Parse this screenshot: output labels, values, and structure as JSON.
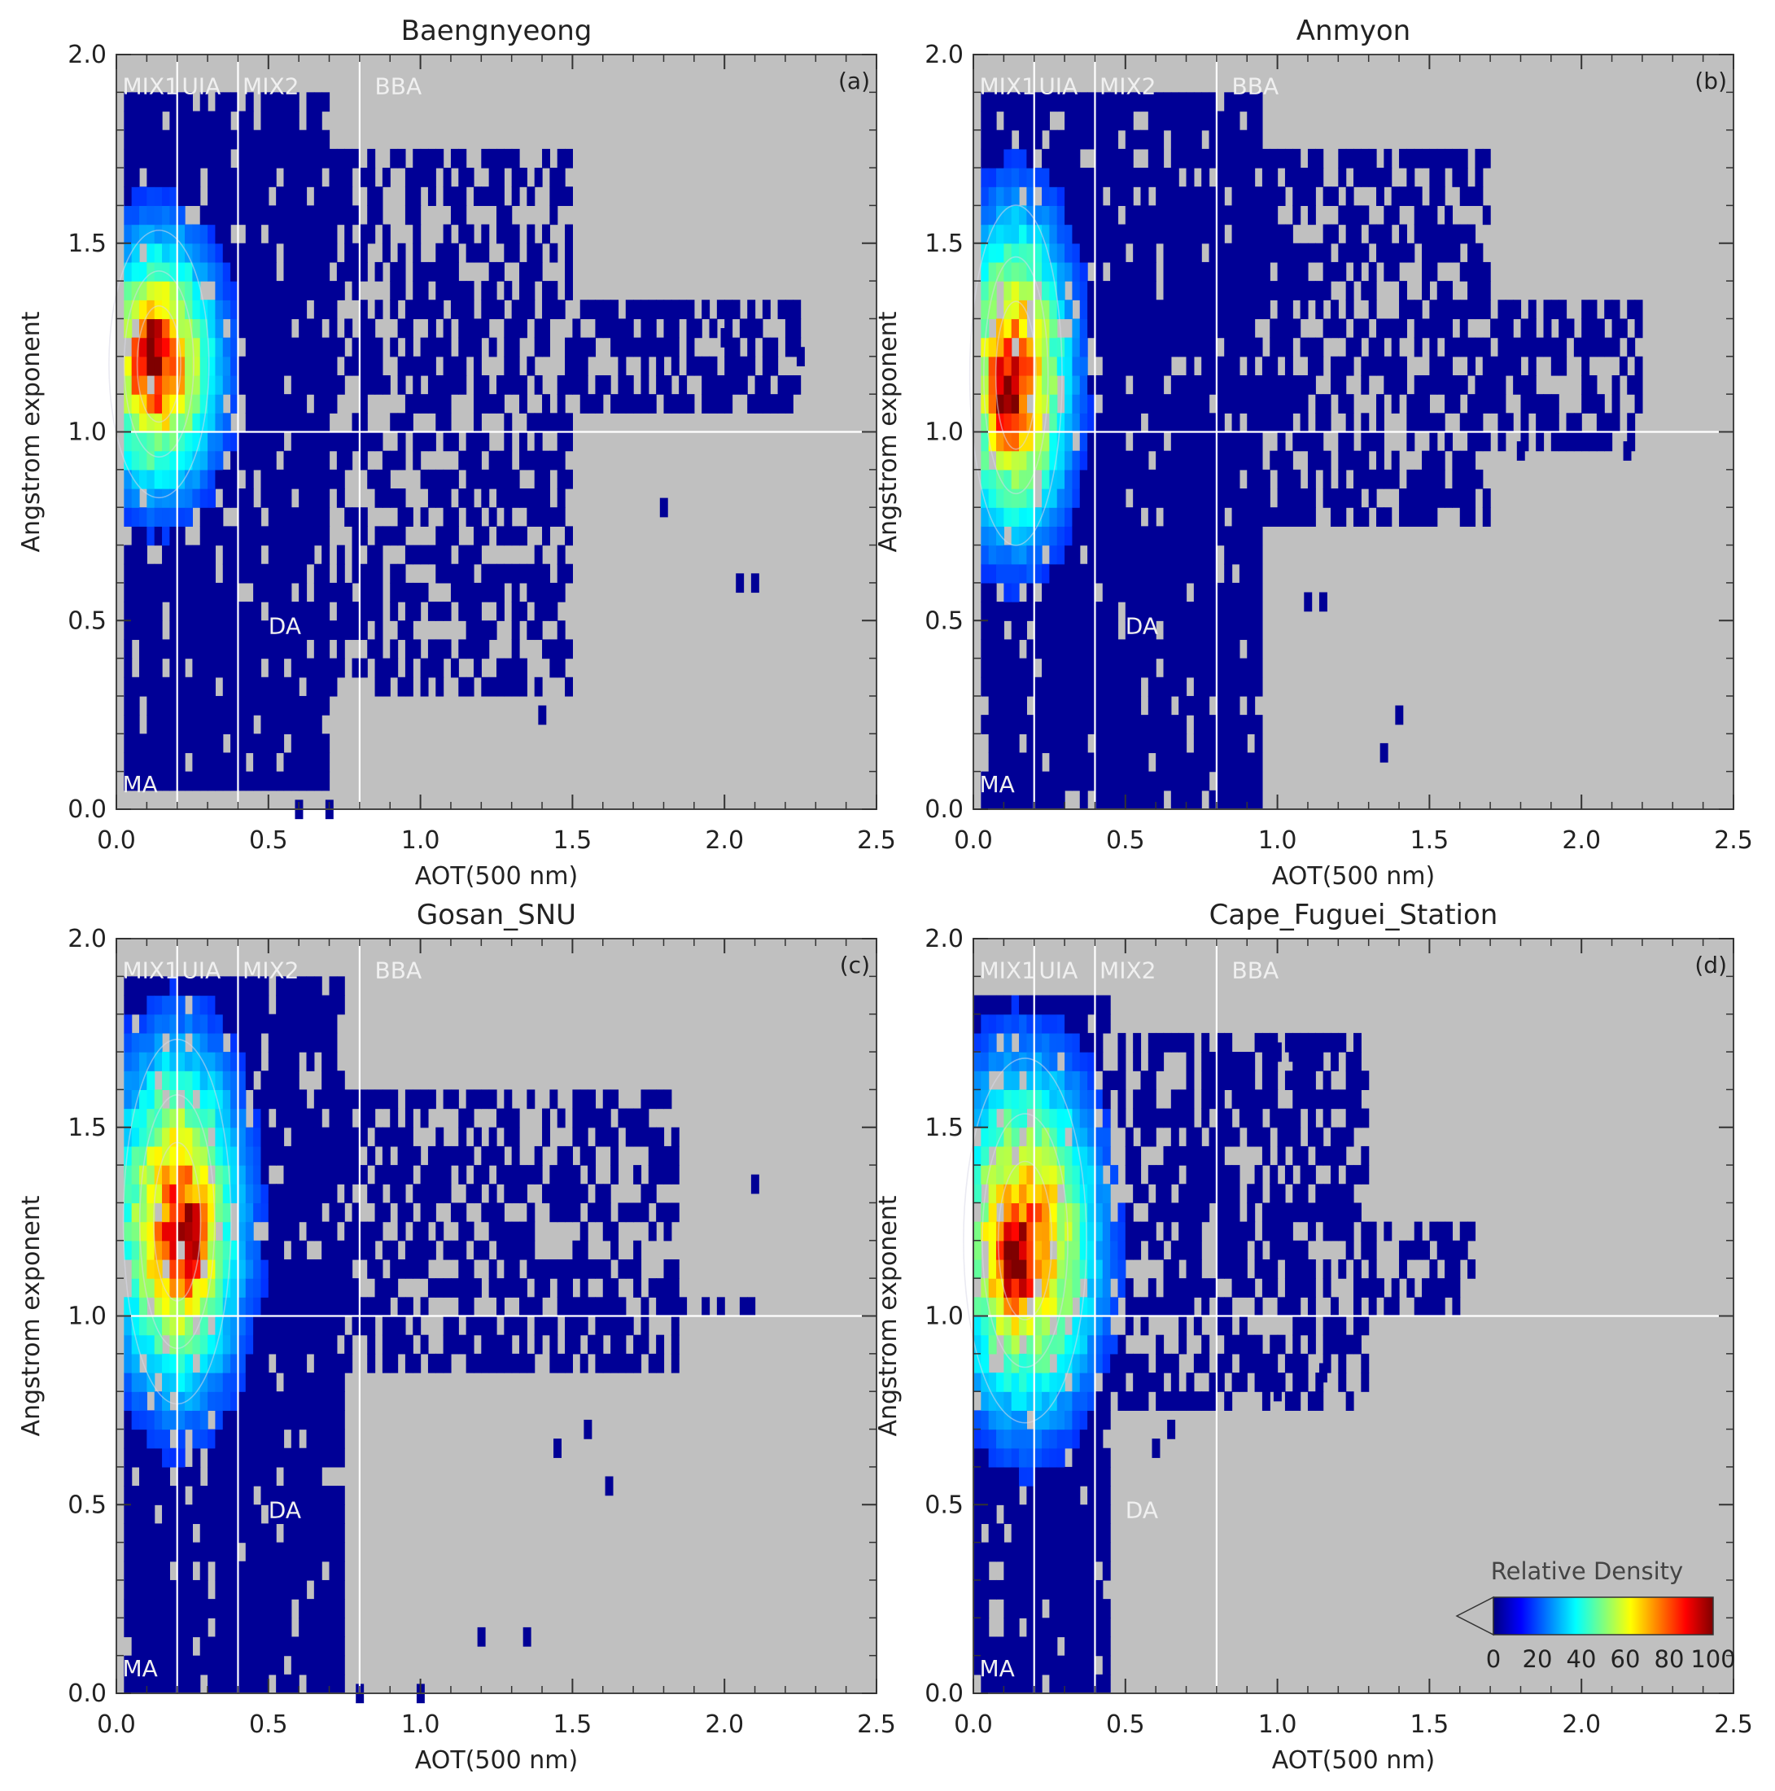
{
  "chart_data": [
    {
      "type": "heatmap",
      "title": "Baengnyeong",
      "panel_label": "(a)",
      "xlabel": "AOT(500 nm)",
      "ylabel": "Angstrom exponent",
      "xlim": [
        0.0,
        2.5
      ],
      "ylim": [
        0.0,
        2.0
      ],
      "xticks": [
        "0.0",
        "0.5",
        "1.0",
        "1.5",
        "2.0",
        "2.5"
      ],
      "yticks": [
        "0.0",
        "0.5",
        "1.0",
        "1.5",
        "2.0"
      ],
      "divider_x": [
        0.2,
        0.4,
        0.8
      ],
      "divider_y": 1.0,
      "region_labels": [
        {
          "text": "MIX1",
          "x": 0.02,
          "y": 1.93
        },
        {
          "text": "UIA",
          "x": 0.215,
          "y": 1.93
        },
        {
          "text": "MIX2",
          "x": 0.415,
          "y": 1.93
        },
        {
          "text": "BBA",
          "x": 0.85,
          "y": 1.93
        },
        {
          "text": "DA",
          "x": 0.5,
          "y": 0.5
        },
        {
          "text": "MA",
          "x": 0.02,
          "y": 0.08
        }
      ],
      "density": {
        "peak": [
          0.11,
          1.2
        ],
        "core_x": 0.14,
        "core_y": 1.18,
        "spread_x": 0.13,
        "spread_y": 0.22,
        "extent": [
          [
            0.02,
            0.7,
            0.05,
            1.9
          ],
          [
            0.7,
            1.5,
            0.3,
            1.75
          ],
          [
            1.5,
            2.25,
            1.05,
            1.35
          ]
        ]
      },
      "outlier_cells": [
        [
          2.05,
          0.6
        ],
        [
          2.1,
          0.6
        ],
        [
          1.4,
          0.25
        ],
        [
          0.6,
          0.0
        ],
        [
          0.7,
          0.0
        ],
        [
          2.0,
          1.25
        ],
        [
          2.25,
          1.2
        ],
        [
          1.8,
          0.8
        ]
      ]
    },
    {
      "type": "heatmap",
      "title": "Anmyon",
      "panel_label": "(b)",
      "xlabel": "AOT(500 nm)",
      "ylabel": "Angstrom exponent",
      "xlim": [
        0.0,
        2.5
      ],
      "ylim": [
        0.0,
        2.0
      ],
      "xticks": [
        "0.0",
        "0.5",
        "1.0",
        "1.5",
        "2.0",
        "2.5"
      ],
      "yticks": [
        "0.0",
        "0.5",
        "1.0",
        "1.5",
        "2.0"
      ],
      "divider_x": [
        0.2,
        0.4,
        0.8
      ],
      "divider_y": 1.0,
      "region_labels": [
        {
          "text": "MIX1",
          "x": 0.02,
          "y": 1.93
        },
        {
          "text": "UIA",
          "x": 0.215,
          "y": 1.93
        },
        {
          "text": "MIX2",
          "x": 0.415,
          "y": 1.93
        },
        {
          "text": "BBA",
          "x": 0.85,
          "y": 1.93
        },
        {
          "text": "DA",
          "x": 0.5,
          "y": 0.5
        },
        {
          "text": "MA",
          "x": 0.02,
          "y": 0.08
        }
      ],
      "density": {
        "peak": [
          0.11,
          1.1
        ],
        "core_x": 0.14,
        "core_y": 1.15,
        "spread_x": 0.12,
        "spread_y": 0.28,
        "extent": [
          [
            0.02,
            0.95,
            0.0,
            1.9
          ],
          [
            0.95,
            1.7,
            0.75,
            1.75
          ],
          [
            1.7,
            2.2,
            0.95,
            1.35
          ]
        ]
      },
      "outlier_cells": [
        [
          1.35,
          0.15
        ],
        [
          1.4,
          0.25
        ],
        [
          1.1,
          0.55
        ],
        [
          1.15,
          0.55
        ],
        [
          2.15,
          0.95
        ],
        [
          1.8,
          0.95
        ]
      ]
    },
    {
      "type": "heatmap",
      "title": "Gosan_SNU",
      "panel_label": "(c)",
      "xlabel": "AOT(500 nm)",
      "ylabel": "Angstrom exponent",
      "xlim": [
        0.0,
        2.5
      ],
      "ylim": [
        0.0,
        2.0
      ],
      "xticks": [
        "0.0",
        "0.5",
        "1.0",
        "1.5",
        "2.0",
        "2.5"
      ],
      "yticks": [
        "0.0",
        "0.5",
        "1.0",
        "1.5",
        "2.0"
      ],
      "divider_x": [
        0.2,
        0.4,
        0.8
      ],
      "divider_y": 1.0,
      "region_labels": [
        {
          "text": "MIX1",
          "x": 0.02,
          "y": 1.93
        },
        {
          "text": "UIA",
          "x": 0.215,
          "y": 1.93
        },
        {
          "text": "MIX2",
          "x": 0.415,
          "y": 1.93
        },
        {
          "text": "BBA",
          "x": 0.85,
          "y": 1.93
        },
        {
          "text": "DA",
          "x": 0.5,
          "y": 0.5
        },
        {
          "text": "MA",
          "x": 0.02,
          "y": 0.08
        }
      ],
      "density": {
        "peak": [
          0.23,
          1.2
        ],
        "core_x": 0.2,
        "core_y": 1.25,
        "spread_x": 0.14,
        "spread_y": 0.3,
        "extent": [
          [
            0.02,
            0.75,
            0.0,
            1.9
          ],
          [
            0.75,
            1.85,
            0.85,
            1.6
          ],
          [
            1.85,
            2.1,
            0.98,
            1.05
          ]
        ]
      },
      "outlier_cells": [
        [
          2.1,
          1.35
        ],
        [
          1.62,
          0.55
        ],
        [
          1.45,
          0.65
        ],
        [
          1.55,
          0.7
        ],
        [
          1.0,
          0.0
        ],
        [
          1.2,
          0.15
        ],
        [
          1.35,
          0.15
        ],
        [
          0.8,
          0.0
        ]
      ]
    },
    {
      "type": "heatmap",
      "title": "Cape_Fuguei_Station",
      "panel_label": "(d)",
      "xlabel": "AOT(500 nm)",
      "ylabel": "Angstrom exponent",
      "xlim": [
        0.0,
        2.5
      ],
      "ylim": [
        0.0,
        2.0
      ],
      "xticks": [
        "0.0",
        "0.5",
        "1.0",
        "1.5",
        "2.0",
        "2.5"
      ],
      "yticks": [
        "0.0",
        "0.5",
        "1.0",
        "1.5",
        "2.0"
      ],
      "divider_x": [
        0.2,
        0.4,
        0.8
      ],
      "divider_y": 1.0,
      "region_labels": [
        {
          "text": "MIX1",
          "x": 0.02,
          "y": 1.93
        },
        {
          "text": "UIA",
          "x": 0.215,
          "y": 1.93
        },
        {
          "text": "MIX2",
          "x": 0.415,
          "y": 1.93
        },
        {
          "text": "BBA",
          "x": 0.85,
          "y": 1.93
        },
        {
          "text": "DA",
          "x": 0.5,
          "y": 0.5
        },
        {
          "text": "MA",
          "x": 0.02,
          "y": 0.08
        }
      ],
      "density": {
        "peak": [
          0.13,
          1.15
        ],
        "core_x": 0.17,
        "core_y": 1.2,
        "spread_x": 0.16,
        "spread_y": 0.3,
        "extent": [
          [
            0.0,
            0.45,
            0.0,
            1.85
          ],
          [
            0.45,
            1.3,
            0.75,
            1.75
          ],
          [
            1.3,
            1.65,
            0.98,
            1.25
          ]
        ]
      },
      "outlier_cells": [
        [
          1.0,
          1.7
        ],
        [
          1.05,
          1.7
        ],
        [
          1.1,
          1.7
        ],
        [
          1.25,
          1.6
        ],
        [
          1.15,
          0.85
        ],
        [
          1.0,
          0.8
        ],
        [
          0.65,
          0.7
        ],
        [
          0.6,
          0.65
        ]
      ]
    }
  ],
  "colorbar": {
    "title": "Relative Density",
    "ticks": [
      "0",
      "20",
      "40",
      "60",
      "80",
      "100"
    ],
    "range": [
      0,
      100
    ],
    "colormap": "jet",
    "colormap_stops": [
      "#00007f",
      "#0000ff",
      "#007fff",
      "#00ffff",
      "#7fff7f",
      "#ffff00",
      "#ff7f00",
      "#ff0000",
      "#7f0000"
    ],
    "underflow_triangle_color": "#c0c0c0"
  },
  "colors": {
    "panel_background": "#c0c0c0",
    "low_density": "#000096",
    "divider_lines": "#ffffff"
  }
}
